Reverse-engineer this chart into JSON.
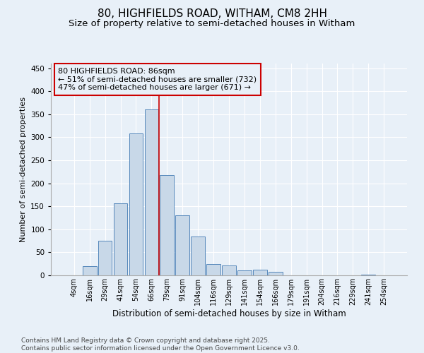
{
  "title1": "80, HIGHFIELDS ROAD, WITHAM, CM8 2HH",
  "title2": "Size of property relative to semi-detached houses in Witham",
  "xlabel": "Distribution of semi-detached houses by size in Witham",
  "ylabel": "Number of semi-detached properties",
  "categories": [
    "4sqm",
    "16sqm",
    "29sqm",
    "41sqm",
    "54sqm",
    "66sqm",
    "79sqm",
    "91sqm",
    "104sqm",
    "116sqm",
    "129sqm",
    "141sqm",
    "154sqm",
    "166sqm",
    "179sqm",
    "191sqm",
    "204sqm",
    "216sqm",
    "229sqm",
    "241sqm",
    "254sqm"
  ],
  "values": [
    0,
    20,
    75,
    157,
    308,
    360,
    217,
    130,
    84,
    25,
    21,
    10,
    12,
    8,
    0,
    0,
    0,
    0,
    0,
    2,
    0
  ],
  "bar_color": "#c8d8e8",
  "bar_edge_color": "#5588bb",
  "vline_x": 5.5,
  "vline_color": "#cc0000",
  "annotation_text": "80 HIGHFIELDS ROAD: 86sqm\n← 51% of semi-detached houses are smaller (732)\n47% of semi-detached houses are larger (671) →",
  "annotation_box_color": "#cc0000",
  "background_color": "#e8f0f8",
  "grid_color": "#ffffff",
  "ylim": [
    0,
    460
  ],
  "yticks": [
    0,
    50,
    100,
    150,
    200,
    250,
    300,
    350,
    400,
    450
  ],
  "footnote": "Contains HM Land Registry data © Crown copyright and database right 2025.\nContains public sector information licensed under the Open Government Licence v3.0.",
  "title1_fontsize": 11,
  "title2_fontsize": 9.5,
  "annotation_fontsize": 8,
  "footnote_fontsize": 6.5,
  "ylabel_fontsize": 8,
  "xlabel_fontsize": 8.5
}
